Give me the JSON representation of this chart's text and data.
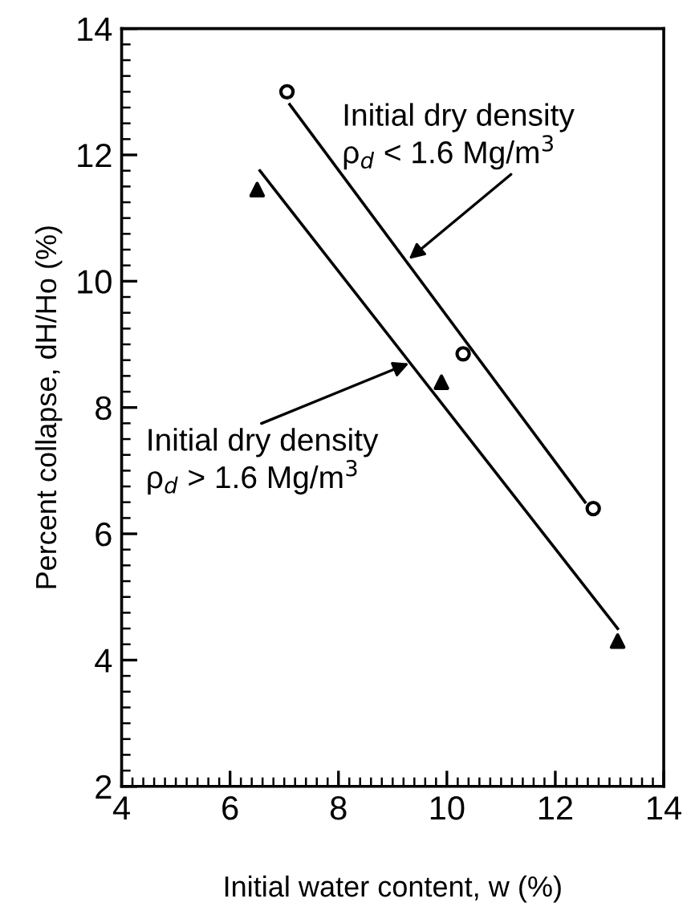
{
  "chart_data": {
    "type": "scatter",
    "xlabel": "Initial water content, w (%)",
    "ylabel": "Percent collapse, dH/Ho (%)",
    "xlim": [
      4,
      14
    ],
    "ylim": [
      2,
      14
    ],
    "xticks": [
      4,
      6,
      8,
      10,
      12,
      14
    ],
    "yticks": [
      2,
      4,
      6,
      8,
      10,
      12,
      14
    ],
    "grid": false,
    "legend": false,
    "series": [
      {
        "marker": "circle",
        "color": "#000000",
        "x": [
          7.05,
          10.3,
          12.7
        ],
        "values": [
          13.0,
          8.85,
          6.4
        ]
      },
      {
        "marker": "triangle",
        "color": "#000000",
        "x": [
          6.5,
          9.9,
          13.15
        ],
        "values": [
          11.45,
          8.4,
          4.3
        ]
      },
      {
        "type": "line",
        "marker": "none",
        "color": "#000000",
        "x": [
          7.1,
          12.55
        ],
        "values": [
          12.8,
          6.5
        ]
      },
      {
        "type": "line",
        "marker": "none",
        "color": "#000000",
        "x": [
          6.55,
          13.15
        ],
        "values": [
          11.75,
          4.5
        ]
      }
    ],
    "annotations": [
      {
        "text": "Initial dry density\nρ$_{d}$ < 1.6 Mg/m$^{3}$",
        "x": 9.3,
        "y": 10.35
      },
      {
        "text": "Initial dry density\nρ$_{d}$ > 1.6 Mg/m$^{3}$",
        "x": 9.3,
        "y": 8.7
      }
    ]
  }
}
